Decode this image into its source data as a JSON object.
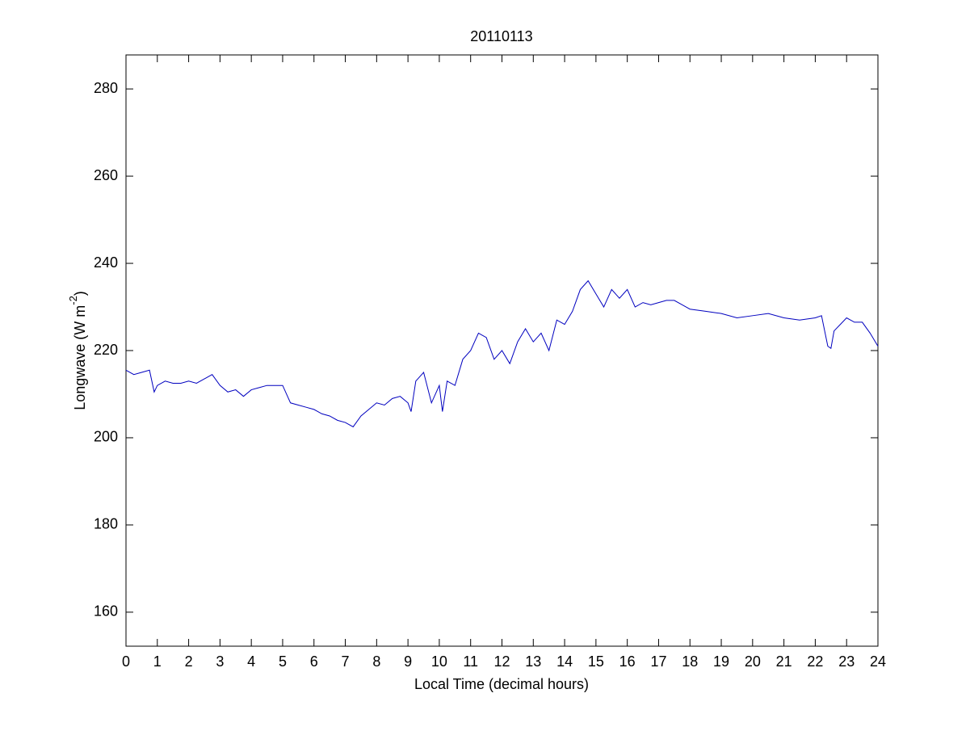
{
  "chart_data": {
    "type": "line",
    "title": "20110113",
    "xlabel": "Local Time (decimal hours)",
    "ylabel_parts": [
      "Longwave (W m",
      "-2",
      ")"
    ],
    "xlim": [
      0,
      24
    ],
    "ylim": [
      152.2,
      287.8
    ],
    "xticks": [
      0,
      1,
      2,
      3,
      4,
      5,
      6,
      7,
      8,
      9,
      10,
      11,
      12,
      13,
      14,
      15,
      16,
      17,
      18,
      19,
      20,
      21,
      22,
      23,
      24
    ],
    "yticks": [
      160,
      180,
      200,
      220,
      240,
      260,
      280
    ],
    "grid": false,
    "x": [
      0,
      0.25,
      0.5,
      0.75,
      0.9,
      1,
      1.25,
      1.5,
      1.75,
      2,
      2.25,
      2.5,
      2.75,
      3,
      3.25,
      3.5,
      3.75,
      4,
      4.25,
      4.5,
      4.75,
      5,
      5.25,
      5.5,
      5.75,
      6,
      6.25,
      6.5,
      6.75,
      7,
      7.25,
      7.5,
      7.75,
      8,
      8.25,
      8.5,
      8.75,
      9,
      9.1,
      9.25,
      9.5,
      9.75,
      10,
      10.1,
      10.25,
      10.5,
      10.75,
      11,
      11.25,
      11.5,
      11.75,
      12,
      12.25,
      12.5,
      12.75,
      13,
      13.25,
      13.5,
      13.75,
      14,
      14.25,
      14.5,
      14.75,
      15,
      15.25,
      15.5,
      15.75,
      16,
      16.25,
      16.5,
      16.75,
      17,
      17.25,
      17.5,
      17.75,
      18,
      18.5,
      19,
      19.5,
      20,
      20.5,
      21,
      21.5,
      22,
      22.2,
      22.4,
      22.5,
      22.6,
      22.8,
      23,
      23.25,
      23.5,
      23.75,
      24
    ],
    "series": [
      {
        "color": "#0000bf",
        "values": [
          215.5,
          214.5,
          215,
          215.5,
          210.5,
          212,
          213,
          212.5,
          212.5,
          213,
          212.5,
          213.5,
          214.5,
          212,
          210.5,
          211,
          209.5,
          211,
          211.5,
          212,
          212,
          212,
          208,
          207.5,
          207,
          206.5,
          205.5,
          205,
          204,
          203.5,
          202.5,
          205,
          206.5,
          208,
          207.5,
          209,
          209.5,
          208,
          206,
          213,
          215,
          208,
          212,
          206,
          213,
          212,
          218,
          220,
          224,
          223,
          218,
          220,
          217,
          222,
          225,
          222,
          224,
          220,
          227,
          226,
          229,
          234,
          236,
          233,
          230,
          234,
          232,
          234,
          230,
          231,
          230.5,
          231,
          231.5,
          231.5,
          230.5,
          229.5,
          229,
          228.5,
          227.5,
          228,
          228.5,
          227.5,
          227,
          227.5,
          228,
          221,
          220.5,
          224.5,
          226,
          227.5,
          226.5,
          226.5,
          224,
          221
        ]
      }
    ]
  }
}
